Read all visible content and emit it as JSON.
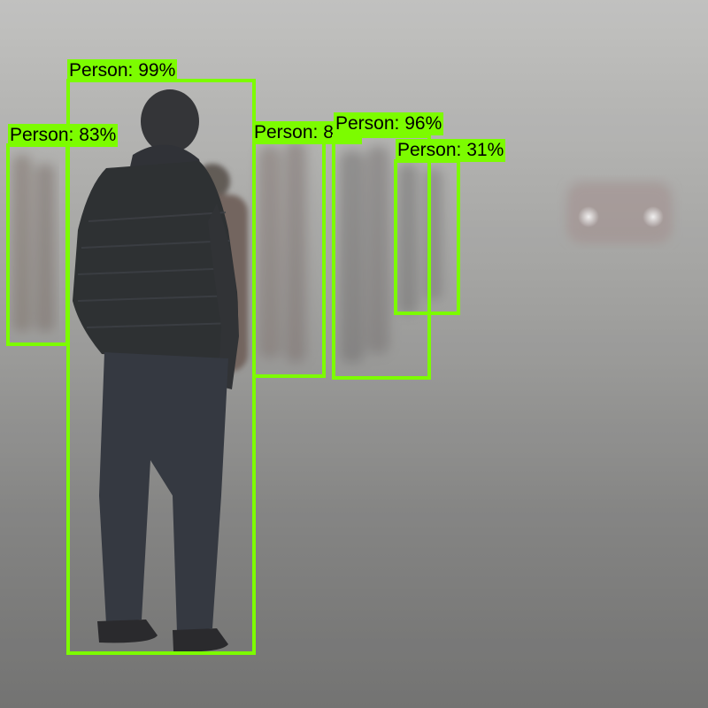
{
  "colors": {
    "box": "#7cfc00",
    "label_bg": "#7cfc00",
    "label_text": "#000000"
  },
  "detections": [
    {
      "label": "Person: 99%",
      "class": "Person",
      "score": 99
    },
    {
      "label": "Person: 83%",
      "class": "Person",
      "score": 83
    },
    {
      "label": "Person: 83%",
      "class": "Person",
      "score": 83
    },
    {
      "label": "Person: 96%",
      "class": "Person",
      "score": 96
    },
    {
      "label": "Person: 31%",
      "class": "Person",
      "score": 31
    }
  ]
}
